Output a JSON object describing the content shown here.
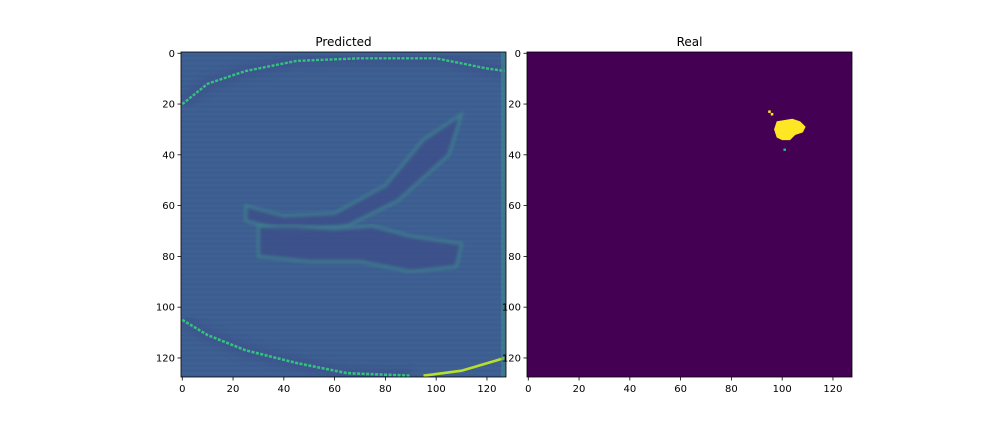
{
  "chart_data": [
    {
      "type": "heatmap",
      "title": "Predicted",
      "colormap": "viridis",
      "image_extent": {
        "x": [
          -0.5,
          127.5
        ],
        "y": [
          -0.5,
          127.5
        ]
      },
      "y_axis_inverted": true,
      "xticks": [
        0,
        20,
        40,
        60,
        80,
        100,
        120
      ],
      "yticks": [
        0,
        20,
        40,
        60,
        80,
        100,
        120
      ],
      "xtick_labels": [
        "0",
        "20",
        "40",
        "60",
        "80",
        "100",
        "120"
      ],
      "ytick_labels": [
        "0",
        "20",
        "40",
        "60",
        "80",
        "100",
        "120"
      ],
      "colors": {
        "background": "#3b5d90",
        "bright_edge": "#35c27e",
        "peak": "#b8df2a",
        "dark_structure": "#3d4f8a",
        "light_structure": "#3e8f8f"
      },
      "description_shapes": {
        "skull_top_curve": [
          [
            0,
            20
          ],
          [
            10,
            12
          ],
          [
            25,
            7
          ],
          [
            45,
            3
          ],
          [
            70,
            2
          ],
          [
            100,
            2
          ],
          [
            120,
            6
          ],
          [
            127,
            7
          ]
        ],
        "skull_bottom_curve": [
          [
            0,
            105
          ],
          [
            10,
            111
          ],
          [
            25,
            117
          ],
          [
            45,
            122
          ],
          [
            65,
            126
          ],
          [
            90,
            127
          ]
        ],
        "bottom_right_curve": [
          [
            95,
            127
          ],
          [
            110,
            125
          ],
          [
            127,
            120
          ]
        ],
        "ventricle_upper": [
          [
            25,
            60
          ],
          [
            40,
            64
          ],
          [
            60,
            63
          ],
          [
            80,
            52
          ],
          [
            95,
            34
          ],
          [
            110,
            24
          ],
          [
            105,
            40
          ],
          [
            85,
            58
          ],
          [
            65,
            68
          ],
          [
            40,
            70
          ],
          [
            25,
            66
          ]
        ],
        "ventricle_lower": [
          [
            30,
            68
          ],
          [
            45,
            68
          ],
          [
            60,
            69
          ],
          [
            75,
            68
          ],
          [
            90,
            72
          ],
          [
            110,
            75
          ],
          [
            108,
            84
          ],
          [
            90,
            86
          ],
          [
            70,
            82
          ],
          [
            50,
            82
          ],
          [
            30,
            80
          ]
        ]
      }
    },
    {
      "type": "heatmap",
      "title": "Real",
      "colormap": "viridis",
      "image_extent": {
        "x": [
          -0.5,
          127.5
        ],
        "y": [
          -0.5,
          127.5
        ]
      },
      "y_axis_inverted": true,
      "xticks": [
        0,
        20,
        40,
        60,
        80,
        100,
        120
      ],
      "yticks": [
        0,
        20,
        40,
        60,
        80,
        100,
        120
      ],
      "xtick_labels": [
        "0",
        "20",
        "40",
        "60",
        "80",
        "100",
        "120"
      ],
      "ytick_labels": [
        "0",
        "20",
        "40",
        "60",
        "80",
        "100",
        "120"
      ],
      "colors": {
        "background": "#440154",
        "foreground": "#fde725",
        "edge": "#2ab07f"
      },
      "mask_blob": [
        [
          98,
          27
        ],
        [
          104,
          26
        ],
        [
          107,
          27
        ],
        [
          109,
          29
        ],
        [
          108,
          31
        ],
        [
          105,
          32
        ],
        [
          103,
          34
        ],
        [
          100,
          34
        ],
        [
          98,
          33
        ],
        [
          97,
          30
        ]
      ],
      "mask_pixels": [
        [
          95,
          23
        ],
        [
          96,
          24
        ],
        [
          101,
          38
        ]
      ]
    }
  ]
}
